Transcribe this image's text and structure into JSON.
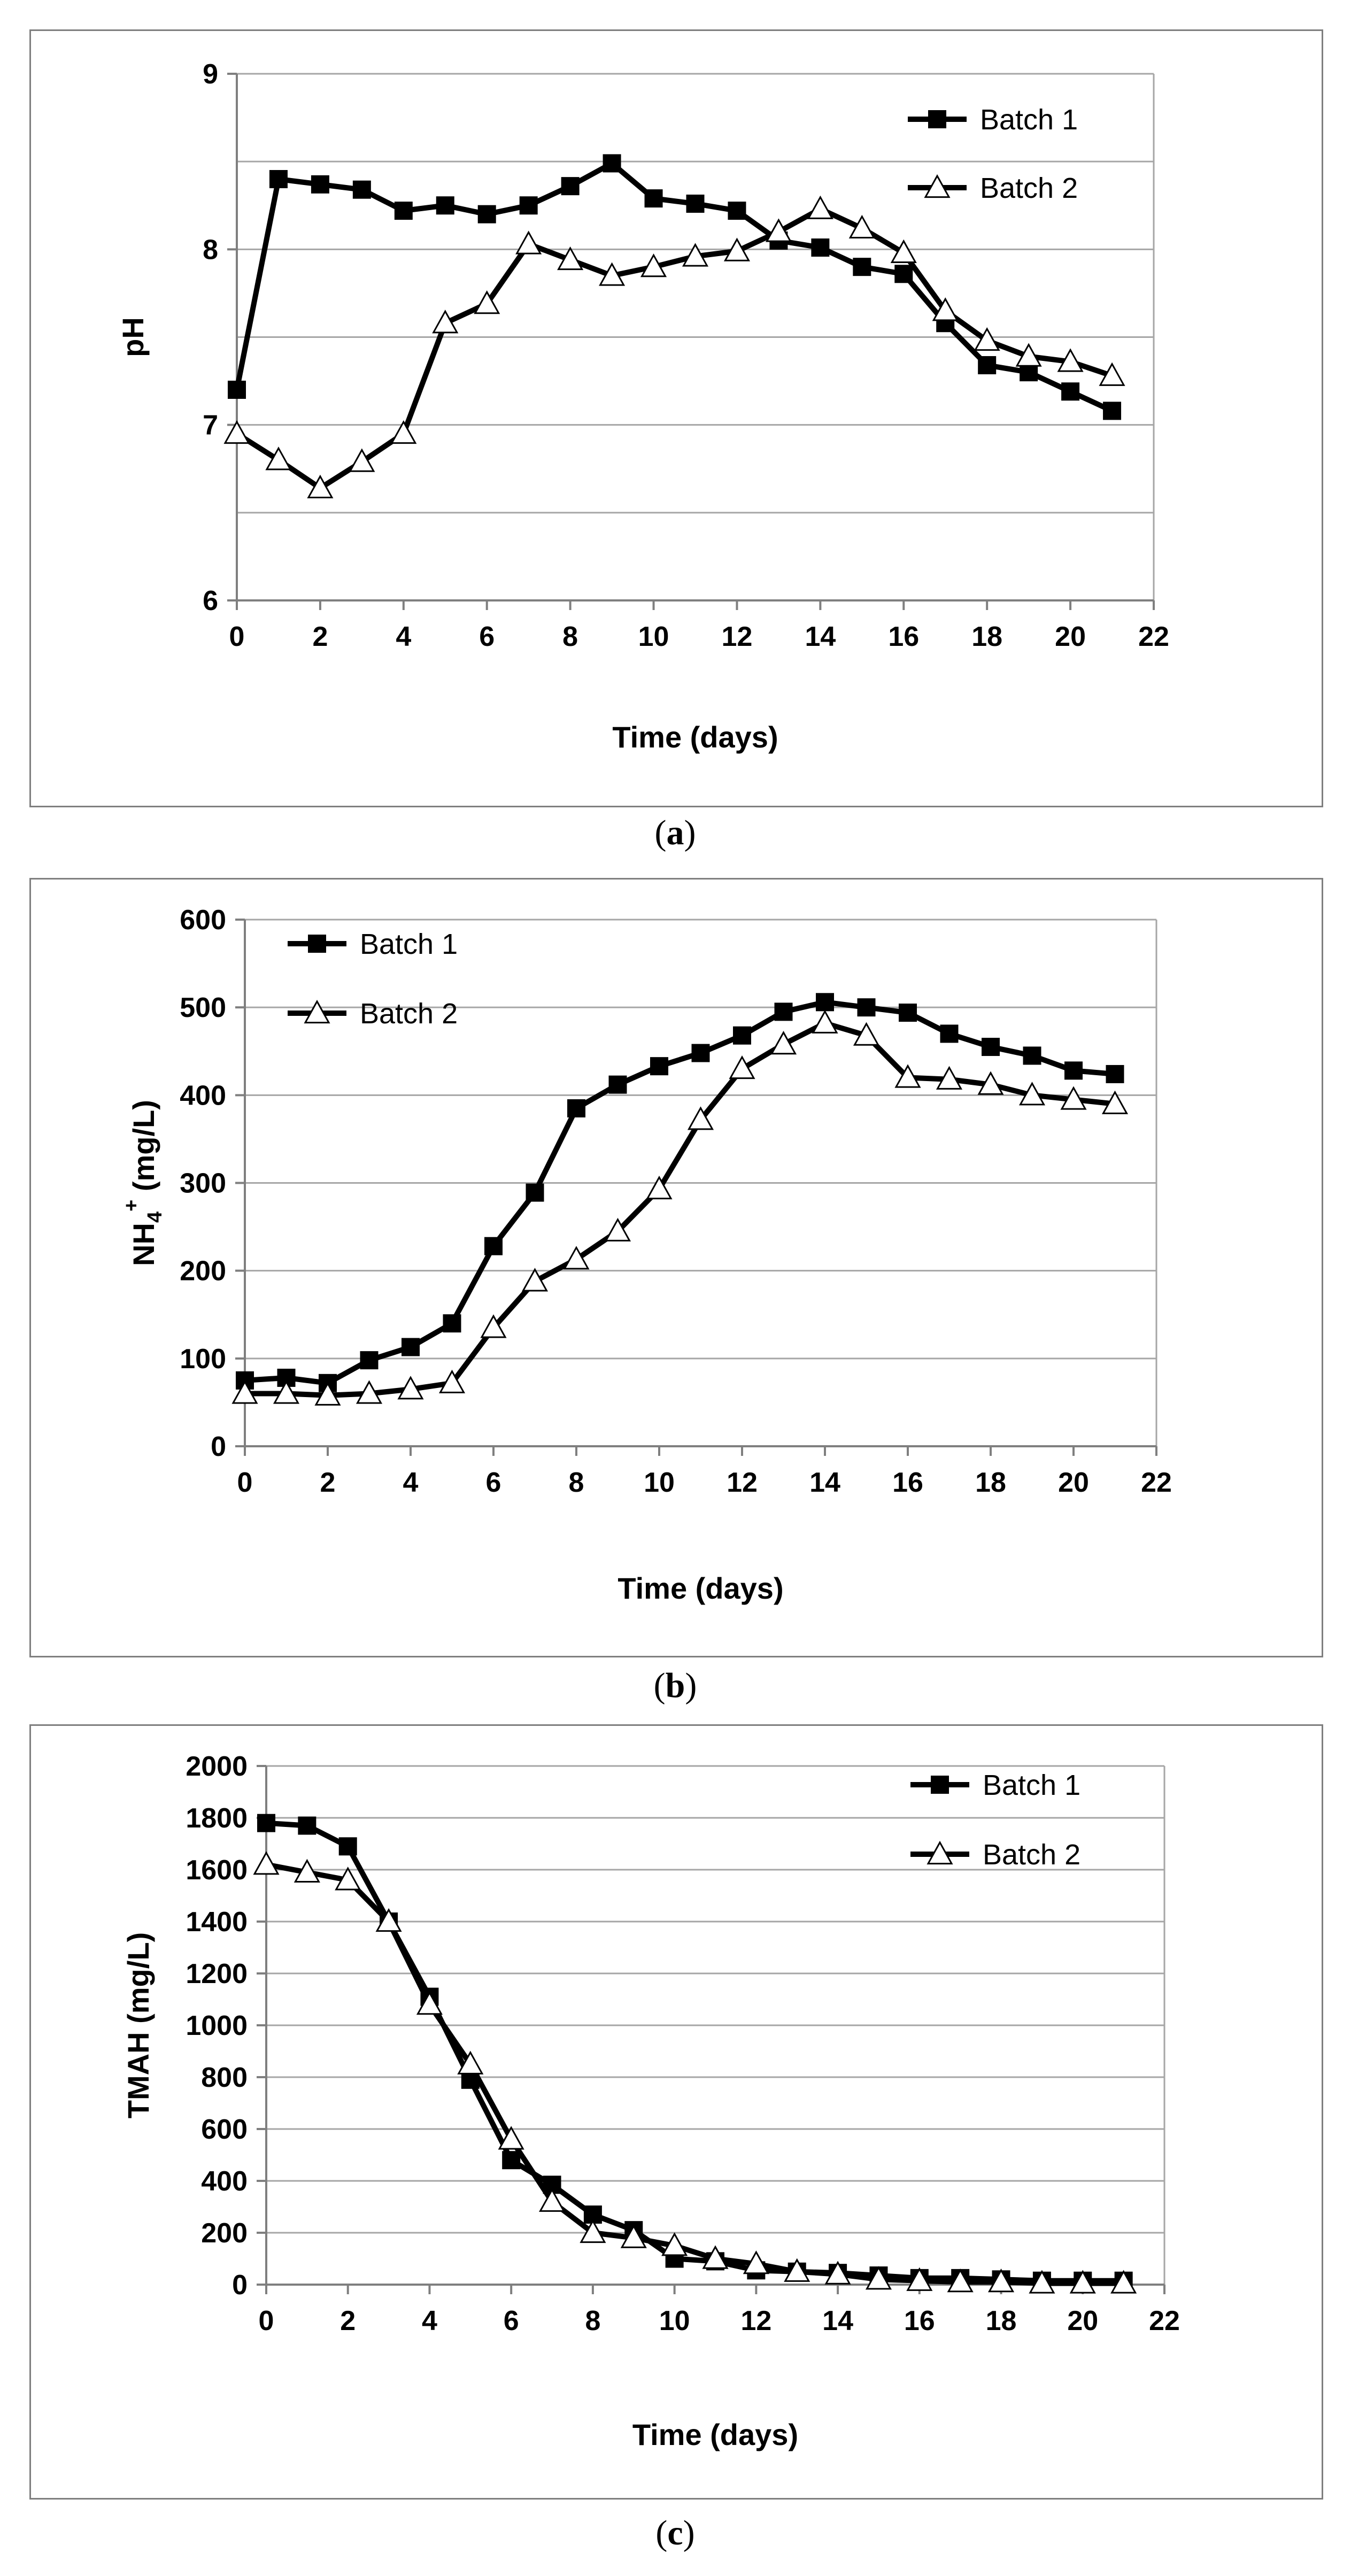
{
  "chart_data": [
    {
      "type": "line",
      "caption": "a",
      "xlabel": "Time (days)",
      "ylabel": "pH",
      "xlim": [
        0,
        22
      ],
      "ylim": [
        6,
        9
      ],
      "xticks": [
        0,
        2,
        4,
        6,
        8,
        10,
        12,
        14,
        16,
        18,
        20,
        22
      ],
      "yticks": [
        6,
        7,
        8,
        9
      ],
      "grid_y": [
        6.5,
        7,
        7.5,
        8,
        8.5,
        9
      ],
      "legend_position": "top-right",
      "series": [
        {
          "name": "Batch 1",
          "marker": "square",
          "x": [
            0,
            1,
            2,
            3,
            4,
            5,
            6,
            7,
            8,
            9,
            10,
            11,
            12,
            13,
            14,
            15,
            16,
            17,
            18,
            19,
            20,
            21
          ],
          "values": [
            7.2,
            8.4,
            8.37,
            8.34,
            8.22,
            8.25,
            8.2,
            8.25,
            8.36,
            8.49,
            8.29,
            8.26,
            8.22,
            8.05,
            8.01,
            7.9,
            7.86,
            7.58,
            7.34,
            7.3,
            7.19,
            7.08
          ]
        },
        {
          "name": "Batch 2",
          "marker": "triangle",
          "x": [
            0,
            1,
            2,
            3,
            4,
            5,
            6,
            7,
            8,
            9,
            10,
            11,
            12,
            13,
            14,
            15,
            16,
            17,
            18,
            19,
            20,
            21
          ],
          "values": [
            6.95,
            6.8,
            6.64,
            6.79,
            6.95,
            7.58,
            7.69,
            8.03,
            7.94,
            7.85,
            7.9,
            7.96,
            7.99,
            8.1,
            8.23,
            8.12,
            7.98,
            7.65,
            7.48,
            7.39,
            7.36,
            7.28
          ]
        }
      ]
    },
    {
      "type": "line",
      "caption": "b",
      "xlabel": "Time (days)",
      "ylabel": "NH4+ (mg/L)",
      "ylabel_parts": {
        "main": "NH",
        "sub": "4",
        "sup": "+",
        "rest": " (mg/L)"
      },
      "xlim": [
        0,
        22
      ],
      "ylim": [
        0,
        600
      ],
      "xticks": [
        0,
        2,
        4,
        6,
        8,
        10,
        12,
        14,
        16,
        18,
        20,
        22
      ],
      "yticks": [
        0,
        100,
        200,
        300,
        400,
        500,
        600
      ],
      "grid_y": [
        100,
        200,
        300,
        400,
        500,
        600
      ],
      "legend_position": "top-left",
      "series": [
        {
          "name": "Batch 1",
          "marker": "square",
          "x": [
            0,
            1,
            2,
            3,
            4,
            5,
            6,
            7,
            8,
            9,
            10,
            11,
            12,
            13,
            14,
            15,
            16,
            17,
            18,
            19,
            20,
            21
          ],
          "values": [
            75,
            78,
            72,
            98,
            113,
            140,
            228,
            289,
            385,
            412,
            433,
            448,
            468,
            495,
            506,
            500,
            494,
            470,
            455,
            445,
            428,
            424
          ]
        },
        {
          "name": "Batch 2",
          "marker": "triangle",
          "x": [
            0,
            1,
            2,
            3,
            4,
            5,
            6,
            7,
            8,
            9,
            10,
            11,
            12,
            13,
            14,
            15,
            16,
            17,
            18,
            19,
            20,
            21
          ],
          "values": [
            60,
            60,
            58,
            60,
            65,
            72,
            135,
            188,
            213,
            245,
            293,
            372,
            430,
            458,
            482,
            468,
            420,
            418,
            412,
            400,
            395,
            390
          ]
        }
      ]
    },
    {
      "type": "line",
      "caption": "c",
      "xlabel": "Time (days)",
      "ylabel": "TMAH (mg/L)",
      "xlim": [
        0,
        22
      ],
      "ylim": [
        0,
        2000
      ],
      "xticks": [
        0,
        2,
        4,
        6,
        8,
        10,
        12,
        14,
        16,
        18,
        20,
        22
      ],
      "yticks": [
        0,
        200,
        400,
        600,
        800,
        1000,
        1200,
        1400,
        1600,
        1800,
        2000
      ],
      "grid_y": [
        200,
        400,
        600,
        800,
        1000,
        1200,
        1400,
        1600,
        1800,
        2000
      ],
      "legend_position": "top-right",
      "series": [
        {
          "name": "Batch 1",
          "marker": "square",
          "x": [
            0,
            1,
            2,
            3,
            4,
            5,
            6,
            7,
            8,
            9,
            10,
            11,
            12,
            13,
            14,
            15,
            16,
            17,
            18,
            19,
            20,
            21
          ],
          "values": [
            1780,
            1770,
            1690,
            1400,
            1110,
            790,
            480,
            385,
            270,
            210,
            100,
            90,
            55,
            50,
            45,
            35,
            25,
            25,
            20,
            15,
            15,
            15
          ]
        },
        {
          "name": "Batch 2",
          "marker": "triangle",
          "x": [
            0,
            1,
            2,
            3,
            4,
            5,
            6,
            7,
            8,
            9,
            10,
            11,
            12,
            13,
            14,
            15,
            16,
            17,
            18,
            19,
            20,
            21
          ],
          "values": [
            1620,
            1590,
            1560,
            1400,
            1080,
            850,
            560,
            320,
            200,
            180,
            150,
            100,
            80,
            50,
            40,
            20,
            15,
            10,
            10,
            5,
            5,
            5
          ]
        }
      ]
    }
  ]
}
